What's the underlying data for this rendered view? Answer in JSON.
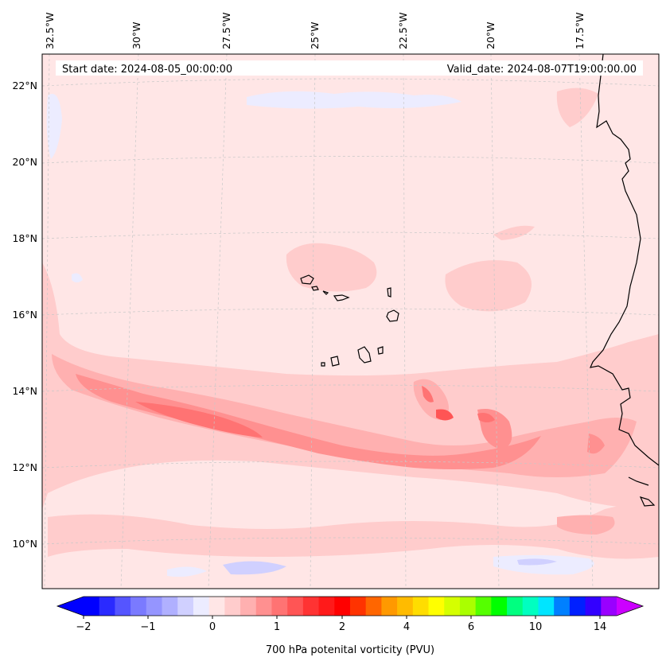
{
  "header": {
    "start_date": "Start date: 2024-08-05_00:00:00",
    "valid_date": "Valid_date: 2024-08-07T19:00:00.00"
  },
  "map": {
    "longitude_labels": [
      "32.5°W",
      "30°W",
      "27.5°W",
      "25°W",
      "22.5°W",
      "20°W",
      "17.5°W"
    ],
    "latitude_labels": [
      "22°N",
      "20°N",
      "18°N",
      "16°N",
      "14°N",
      "12°N",
      "10°N"
    ],
    "background_color": "#ffe6e6",
    "coastline_color": "#000000"
  },
  "colorbar": {
    "label": "700 hPa potenital vorticity (PVU)",
    "tick_labels": [
      "−2",
      "−1",
      "0",
      "1",
      "2",
      "4",
      "6",
      "10",
      "14"
    ],
    "colors": [
      "#0000ff",
      "#2a2aff",
      "#5555ff",
      "#7a7aff",
      "#9595ff",
      "#b0b0ff",
      "#d0d0ff",
      "#ececff",
      "#ffe6e6",
      "#ffcccc",
      "#ffb0b0",
      "#ff9090",
      "#ff7373",
      "#ff5555",
      "#ff3333",
      "#ff1a1a",
      "#ff0000",
      "#ff3300",
      "#ff6600",
      "#ff9900",
      "#ffbb00",
      "#ffdd00",
      "#ffff00",
      "#d5ff00",
      "#aaff00",
      "#55ff00",
      "#00ff00",
      "#00ff80",
      "#00ffc0",
      "#00e5ff",
      "#0080ff",
      "#0020ff",
      "#3300ff",
      "#9900ff"
    ],
    "arrow_low_color": "#0000ff",
    "arrow_high_color": "#cc00ff"
  }
}
